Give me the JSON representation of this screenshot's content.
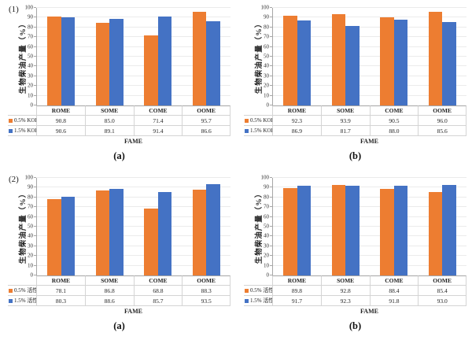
{
  "figure": {
    "xlabel": "FAME",
    "ylabel": "生物柴油产量（%）",
    "row_labels": [
      "(1)",
      "(2)"
    ],
    "colors": {
      "series_orange": "#ED7D31",
      "series_blue": "#4472C4",
      "gridline": "#ebebeb",
      "axis": "#a6a6a6",
      "table_border": "#d4d4d4"
    }
  },
  "chart_data": [
    {
      "type": "bar",
      "row_label": "(1)",
      "caption": "(a)",
      "title": "",
      "xlabel": "FAME",
      "ylabel": "生物柴油产量（%）",
      "ylim": [
        0,
        100
      ],
      "ytick_step": 10,
      "grid": true,
      "legend_position": "table-left",
      "categories": [
        "ROME",
        "SOME",
        "COME",
        "OOME"
      ],
      "series": [
        {
          "name": "0.5% KOH",
          "color": "#ED7D31",
          "values": [
            90.8,
            85.0,
            71.4,
            95.7
          ]
        },
        {
          "name": "1.5% KOH",
          "color": "#4472C4",
          "values": [
            90.6,
            89.1,
            91.4,
            86.6
          ]
        }
      ]
    },
    {
      "type": "bar",
      "row_label": "",
      "caption": "(b)",
      "title": "",
      "xlabel": "FAME",
      "ylabel": "生物柴油产量（%）",
      "ylim": [
        0,
        100
      ],
      "ytick_step": 10,
      "grid": true,
      "legend_position": "table-left",
      "categories": [
        "ROME",
        "SOME",
        "COME",
        "OOME"
      ],
      "series": [
        {
          "name": "0.5% KOH",
          "color": "#ED7D31",
          "values": [
            92.3,
            93.9,
            90.5,
            96.0
          ]
        },
        {
          "name": "1.5% KOH",
          "color": "#4472C4",
          "values": [
            86.9,
            81.7,
            88.0,
            85.6
          ]
        }
      ]
    },
    {
      "type": "bar",
      "row_label": "(2)",
      "caption": "(a)",
      "title": "",
      "xlabel": "FAME",
      "ylabel": "生物柴油产量（%）",
      "ylim": [
        0,
        100
      ],
      "ytick_step": 10,
      "grid": true,
      "legend_position": "table-left",
      "categories": [
        "ROME",
        "SOME",
        "COME",
        "OOME"
      ],
      "series": [
        {
          "name": "0.5% 活性炭",
          "color": "#ED7D31",
          "values": [
            78.1,
            86.8,
            68.8,
            88.3
          ]
        },
        {
          "name": "1.5% 活性炭",
          "color": "#4472C4",
          "values": [
            80.3,
            88.6,
            85.7,
            93.5
          ]
        }
      ]
    },
    {
      "type": "bar",
      "row_label": "",
      "caption": "(b)",
      "title": "",
      "xlabel": "FAME",
      "ylabel": "生物柴油产量（%）",
      "ylim": [
        0,
        100
      ],
      "ytick_step": 10,
      "grid": true,
      "legend_position": "table-left",
      "categories": [
        "ROME",
        "SOME",
        "COME",
        "OOME"
      ],
      "series": [
        {
          "name": "0.5% 活性炭",
          "color": "#ED7D31",
          "values": [
            89.8,
            92.8,
            88.4,
            85.4
          ]
        },
        {
          "name": "1.5% 活性炭",
          "color": "#4472C4",
          "values": [
            91.7,
            92.3,
            91.8,
            93.0
          ]
        }
      ]
    }
  ]
}
